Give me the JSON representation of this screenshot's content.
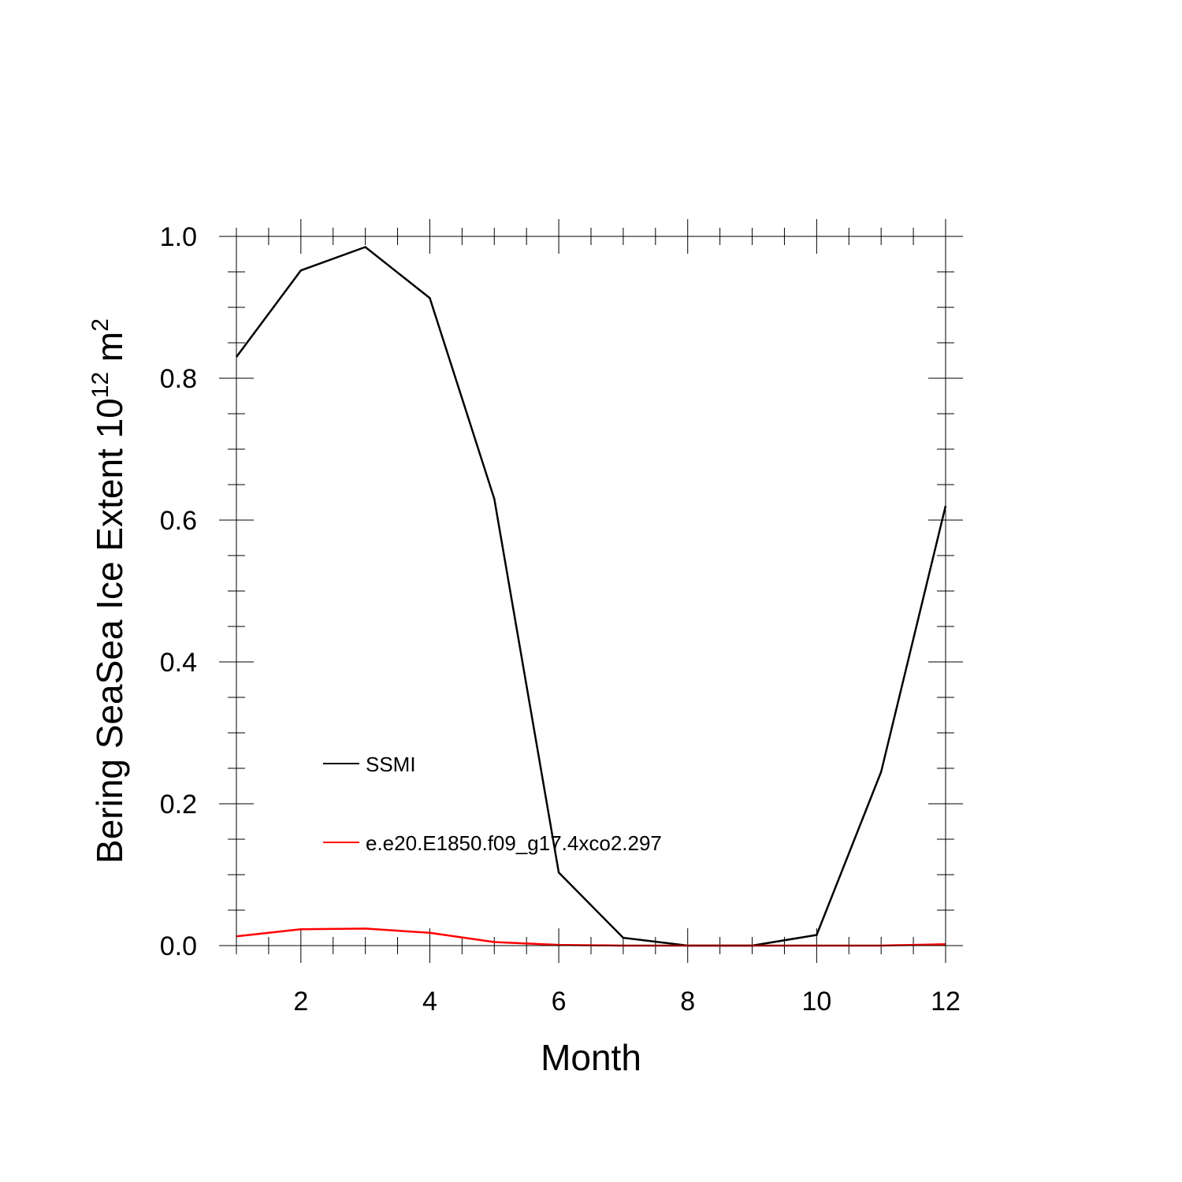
{
  "chart_data": {
    "type": "line",
    "xlabel": "Month",
    "ylabel": {
      "text": "Bering SeaSea Ice Extent 10",
      "superscript_1": "12",
      "unit": " m",
      "superscript_2": "2"
    },
    "xlim": [
      1,
      12
    ],
    "ylim": [
      0,
      1
    ],
    "x_ticks": [
      2,
      4,
      6,
      8,
      10,
      12
    ],
    "x_tick_labels": [
      "2",
      "4",
      "6",
      "8",
      "10",
      "12"
    ],
    "y_ticks": [
      0,
      0.2,
      0.4,
      0.6,
      0.8,
      1.0
    ],
    "y_tick_labels": [
      "0.0",
      "0.2",
      "0.4",
      "0.6",
      "0.8",
      "1.0"
    ],
    "grid": false,
    "legend_position": "left-middle",
    "x": [
      1,
      2,
      3,
      4,
      5,
      6,
      7,
      8,
      9,
      10,
      11,
      12
    ],
    "series": [
      {
        "name": "SSMI",
        "color": "#000000",
        "values": [
          0.83,
          0.952,
          0.985,
          0.913,
          0.63,
          0.103,
          0.011,
          0.0,
          0.0,
          0.015,
          0.245,
          0.62
        ]
      },
      {
        "name": "e.e20.E1850.f09_g17.4xco2.297",
        "color": "#ff0000",
        "values": [
          0.013,
          0.023,
          0.024,
          0.018,
          0.005,
          0.001,
          0.0,
          0.0,
          0.0,
          0.0,
          0.0,
          0.002
        ]
      }
    ]
  }
}
